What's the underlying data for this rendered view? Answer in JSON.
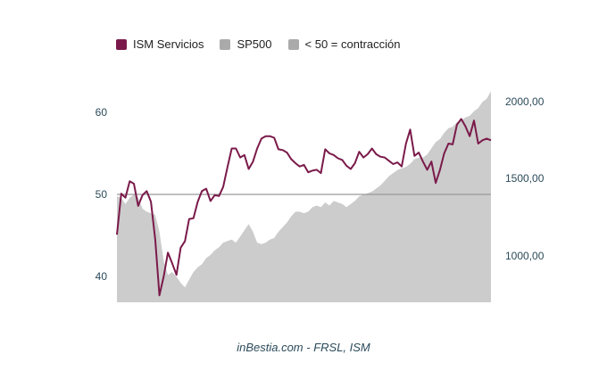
{
  "legend": [
    {
      "label": "ISM Servicios",
      "color": "#7a1a4a"
    },
    {
      "label": "SP500",
      "color": "#aaaaaa"
    },
    {
      "label": "< 50 = contracción",
      "color": "#aaaaaa"
    }
  ],
  "source": "inBestia.com - FRSL, ISM",
  "chart_data": {
    "type": "line",
    "title": "",
    "left_axis": {
      "ticks": [
        "40",
        "50",
        "60"
      ],
      "tick_values": [
        40,
        50,
        60
      ],
      "range": [
        37,
        65
      ]
    },
    "right_axis": {
      "ticks": [
        "1000,00",
        "1500,00",
        "2000,00"
      ],
      "tick_values": [
        1000,
        1500,
        2000
      ],
      "range": [
        700,
        2200
      ]
    },
    "threshold": 50,
    "series": [
      {
        "name": "ISM Servicios",
        "axis": "left",
        "type": "line",
        "color": "#7a1a4a",
        "values": [
          45.1,
          50.1,
          49.6,
          51.6,
          51.3,
          48.6,
          49.9,
          50.4,
          49.1,
          44.5,
          37.7,
          40.0,
          42.9,
          41.6,
          40.2,
          43.5,
          44.3,
          47.0,
          47.1,
          49.1,
          50.4,
          50.7,
          49.2,
          49.9,
          49.8,
          50.9,
          53.3,
          55.6,
          55.6,
          54.5,
          54.8,
          53.1,
          54.0,
          55.6,
          56.8,
          57.1,
          57.1,
          56.9,
          55.5,
          55.4,
          55.1,
          54.3,
          53.8,
          53.4,
          53.6,
          52.7,
          52.9,
          53.0,
          52.6,
          55.5,
          55.0,
          54.8,
          54.4,
          54.2,
          53.5,
          53.1,
          53.8,
          55.2,
          54.5,
          54.9,
          55.6,
          54.9,
          54.6,
          54.5,
          54.1,
          53.7,
          53.9,
          53.4,
          56.2,
          57.9,
          54.7,
          55.1,
          54.0,
          53.0,
          54.0,
          51.4,
          53.0,
          55.0,
          56.2,
          56.1,
          58.5,
          59.2,
          58.3,
          57.1,
          59.0,
          56.2,
          56.6,
          56.8,
          56.6
        ]
      },
      {
        "name": "SP500",
        "axis": "right",
        "type": "area",
        "color": "#cccccc",
        "values": [
          1390,
          1380,
          1340,
          1380,
          1400,
          1380,
          1310,
          1290,
          1280,
          1270,
          1160,
          970,
          880,
          900,
          870,
          830,
          800,
          850,
          900,
          930,
          950,
          990,
          1010,
          1040,
          1060,
          1090,
          1100,
          1110,
          1090,
          1130,
          1170,
          1210,
          1160,
          1090,
          1080,
          1090,
          1110,
          1120,
          1160,
          1190,
          1220,
          1260,
          1290,
          1290,
          1280,
          1290,
          1320,
          1330,
          1320,
          1350,
          1330,
          1360,
          1350,
          1340,
          1320,
          1340,
          1360,
          1390,
          1400,
          1410,
          1420,
          1440,
          1460,
          1490,
          1520,
          1540,
          1560,
          1570,
          1580,
          1600,
          1630,
          1640,
          1640,
          1660,
          1700,
          1740,
          1760,
          1800,
          1830,
          1840,
          1870,
          1880,
          1900,
          1910,
          1940,
          1960,
          2000,
          2020,
          2070
        ]
      }
    ]
  }
}
